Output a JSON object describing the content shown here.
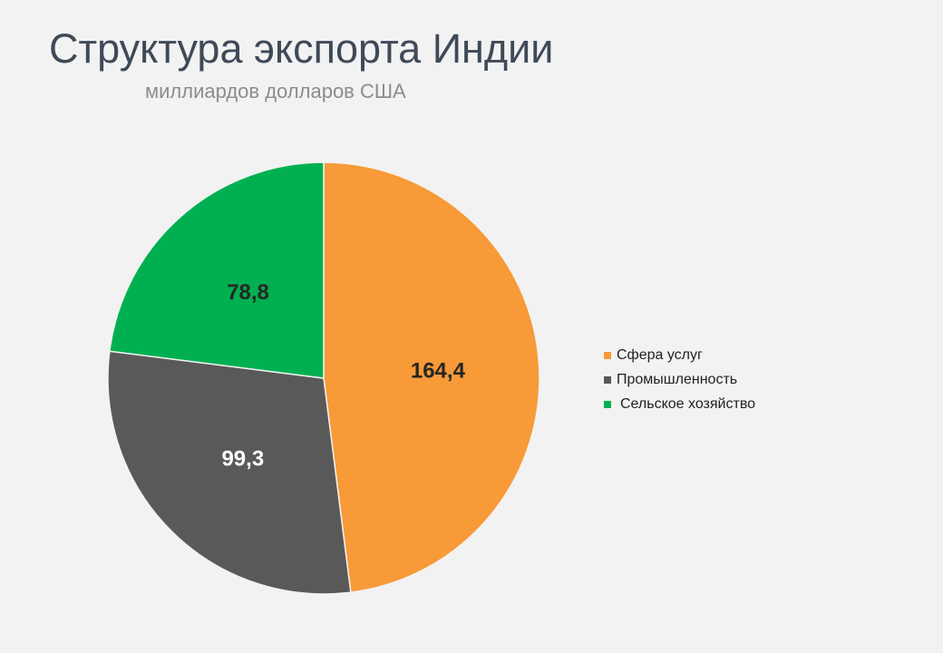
{
  "chart_data": {
    "type": "pie",
    "title": "Структура экспорта Индии",
    "subtitle": "миллиардов долларов США",
    "slices": [
      {
        "label": "Сфера услуг",
        "value": 164.4,
        "display": "164,4",
        "color": "#f79a37",
        "label_color": "#262626"
      },
      {
        "label": "Промышленность",
        "value": 99.3,
        "display": "99,3",
        "color": "#595959",
        "label_color": "#ffffff"
      },
      {
        "label": "Сельское хозяйство",
        "value": 78.8,
        "display": "78,8",
        "color": "#00b050",
        "label_color": "#262626"
      }
    ],
    "start_angle_deg": 0,
    "direction": "clockwise",
    "legend_position": "right"
  }
}
